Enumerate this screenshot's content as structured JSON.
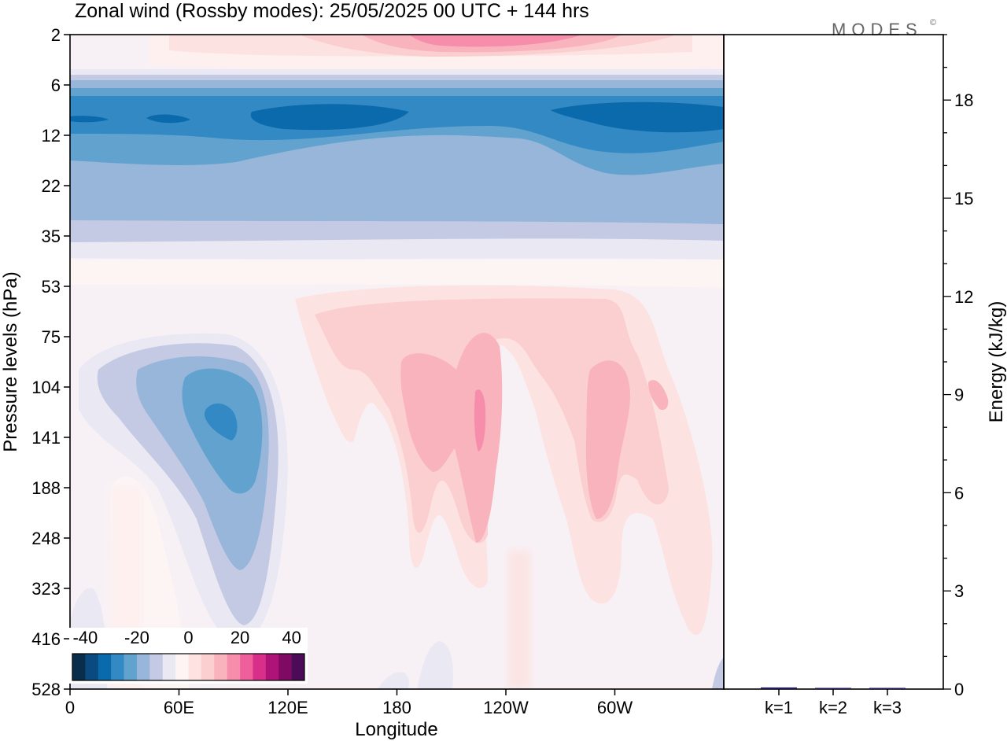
{
  "brand": {
    "logo_text": "MODES",
    "logo_mark": "©"
  },
  "chart_data": [
    {
      "type": "heatmap",
      "title": "Zonal wind (Rossby modes):  25/05/2025  00 UTC  + 144 hrs",
      "xlabel": "Longitude",
      "ylabel": "Pressure levels (hPa)",
      "x_ticks": [
        "0",
        "60E",
        "120E",
        "180",
        "120W",
        "60W"
      ],
      "x_tick_positions_deg": [
        0,
        60,
        120,
        180,
        240,
        300
      ],
      "xlim_deg": [
        0,
        360
      ],
      "y_ticks": [
        "2",
        "6",
        "12",
        "22",
        "35",
        "53",
        "75",
        "104",
        "141",
        "188",
        "248",
        "323",
        "416",
        "528"
      ],
      "y_scale": "log-pressure (levels evenly spaced)",
      "ylim_hPa": [
        528,
        2
      ],
      "colorbar": {
        "tick_labels": [
          "-40",
          "-20",
          "0",
          "20",
          "40"
        ],
        "tick_values": [
          -40,
          -20,
          0,
          20,
          40
        ],
        "range": [
          -45,
          45
        ],
        "step": 5,
        "colors": [
          "#0b2d4c",
          "#0a4a7e",
          "#0b6aac",
          "#3389c3",
          "#62a2cf",
          "#97b6d9",
          "#c4cae4",
          "#eae9f3",
          "#fdf4f4",
          "#fce3e2",
          "#fbcfd0",
          "#f9b3bd",
          "#f68eab",
          "#ef5f9b",
          "#d8308a",
          "#b01378",
          "#7e0a63",
          "#4c0b56"
        ]
      },
      "features": [
        {
          "name": "upper negative jet",
          "lon_range_deg": [
            0,
            360
          ],
          "level_range_hPa": [
            6,
            35
          ],
          "min_value": -40
        },
        {
          "name": "upper positive band",
          "lon_range_deg": [
            60,
            330
          ],
          "level_range_hPa": [
            2,
            4
          ],
          "max_value": 15
        },
        {
          "name": "tropospheric negative cell",
          "lon_center_deg": 85,
          "level_center_hPa": 130,
          "min_value": -20
        },
        {
          "name": "positive cell",
          "lon_center_deg": 225,
          "level_center_hPa": 140,
          "max_value": 15
        },
        {
          "name": "positive cell",
          "lon_center_deg": 290,
          "level_center_hPa": 130,
          "max_value": 10
        }
      ]
    },
    {
      "type": "bar",
      "ylabel": "Energy (kJ/kg)",
      "categories": [
        "k=1",
        "k=2",
        "k=3"
      ],
      "values": [
        0.05,
        0.03,
        0.03
      ],
      "ylim": [
        0,
        20
      ],
      "y_ticks": [
        "0",
        "3",
        "6",
        "9",
        "12",
        "15",
        "18"
      ],
      "y_tick_values": [
        0,
        3,
        6,
        9,
        12,
        15,
        18
      ],
      "bar_color": "#1f1a5c"
    }
  ]
}
